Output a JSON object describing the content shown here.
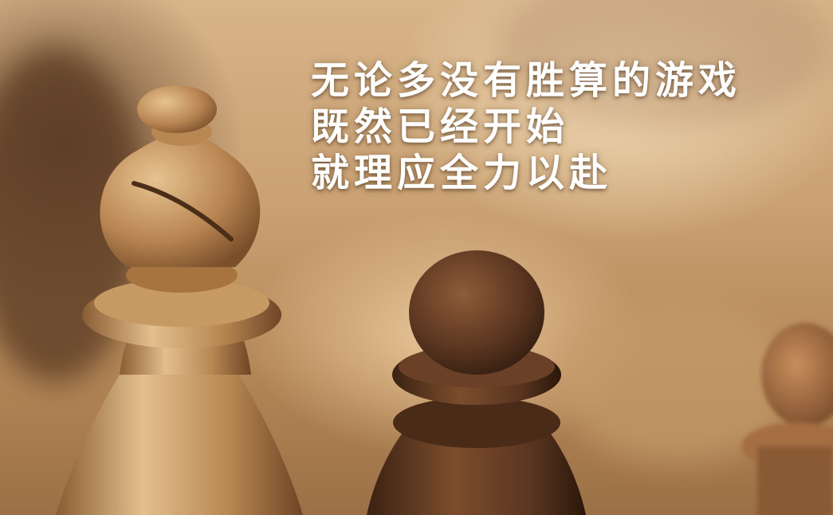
{
  "quote": {
    "lines": [
      "无论多没有胜算的游戏",
      "既然已经开始",
      "就理应全力以赴"
    ]
  },
  "scene": {
    "subject": [
      "bishop",
      "pawn",
      "pawn"
    ],
    "colors": {
      "light_wood": "#c99c64",
      "dark_wood": "#5a3520",
      "background": "#d8b489"
    }
  }
}
